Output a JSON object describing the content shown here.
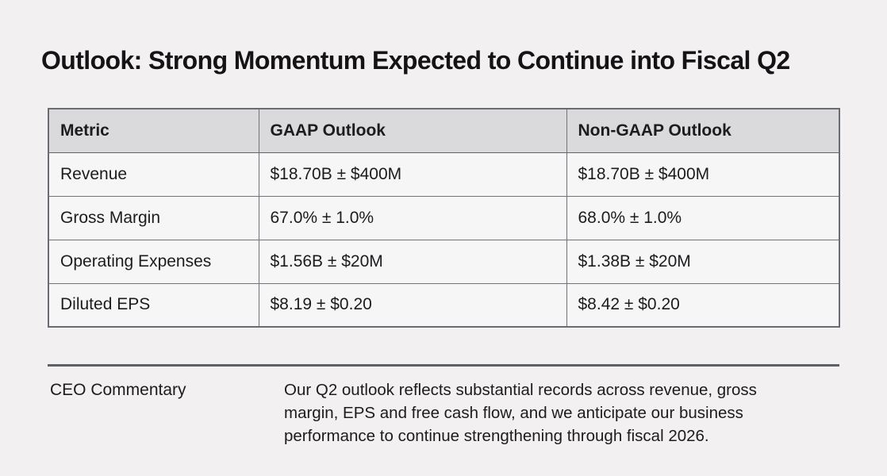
{
  "slide": {
    "title": "Outlook: Strong Momentum Expected to Continue into Fiscal Q2"
  },
  "table": {
    "headers": [
      "Metric",
      "GAAP Outlook",
      "Non-GAAP Outlook"
    ],
    "rows": [
      [
        "Revenue",
        "$18.70B ± $400M",
        "$18.70B ± $400M"
      ],
      [
        "Gross Margin",
        "67.0% ± 1.0%",
        "68.0% ± 1.0%"
      ],
      [
        "Operating Expenses",
        "$1.56B ± $20M",
        "$1.38B ± $20M"
      ],
      [
        "Diluted EPS",
        "$8.19 ± $0.20",
        "$8.42 ± $0.20"
      ]
    ]
  },
  "commentary": {
    "label": "CEO Commentary",
    "text": "Our Q2 outlook reflects substantial records across revenue, gross margin, EPS and free cash flow, and we anticipate our business performance to continue strengthening through fiscal 2026."
  },
  "colors": {
    "page_background": "#f2f0f1",
    "table_header_background": "#dadadd",
    "table_cell_background": "#f7f6f7",
    "table_border": "#72727a",
    "divider": "#5d616a",
    "text": "#1c1c1e"
  }
}
